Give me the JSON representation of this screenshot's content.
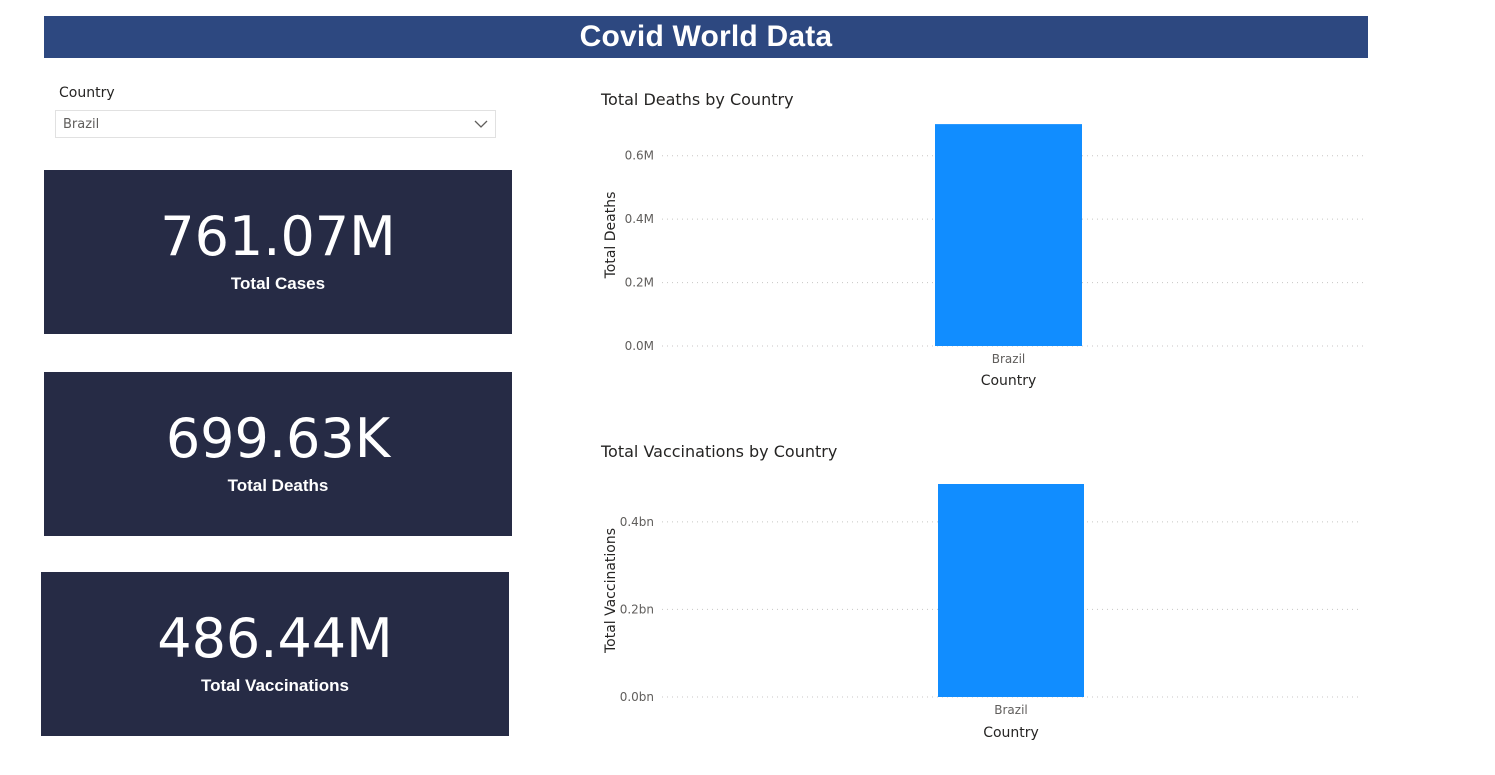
{
  "header": {
    "title": "Covid World Data"
  },
  "slicer": {
    "label": "Country",
    "selected": "Brazil"
  },
  "cards": [
    {
      "value": "761.07M",
      "label": "Total Cases"
    },
    {
      "value": "699.63K",
      "label": "Total Deaths"
    },
    {
      "value": "486.44M",
      "label": "Total Vaccinations"
    }
  ],
  "colors": {
    "header": "#2d4880",
    "card": "#262b45",
    "bar": "#118dff"
  },
  "chart_data": [
    {
      "type": "bar",
      "title": "Total Deaths by Country",
      "categories": [
        "Brazil"
      ],
      "values": [
        699630
      ],
      "xlabel": "Country",
      "ylabel": "Total Deaths",
      "ylim": [
        0,
        700000
      ],
      "yticks": [
        0,
        200000,
        400000,
        600000
      ],
      "ytick_labels": [
        "0.0M",
        "0.2M",
        "0.4M",
        "0.6M"
      ],
      "grid": true
    },
    {
      "type": "bar",
      "title": "Total Vaccinations by Country",
      "categories": [
        "Brazil"
      ],
      "values": [
        486440000
      ],
      "xlabel": "Country",
      "ylabel": "Total Vaccinations",
      "ylim": [
        0,
        486440000
      ],
      "yticks": [
        0,
        200000000,
        400000000
      ],
      "ytick_labels": [
        "0.0bn",
        "0.2bn",
        "0.4bn"
      ],
      "grid": true
    }
  ]
}
